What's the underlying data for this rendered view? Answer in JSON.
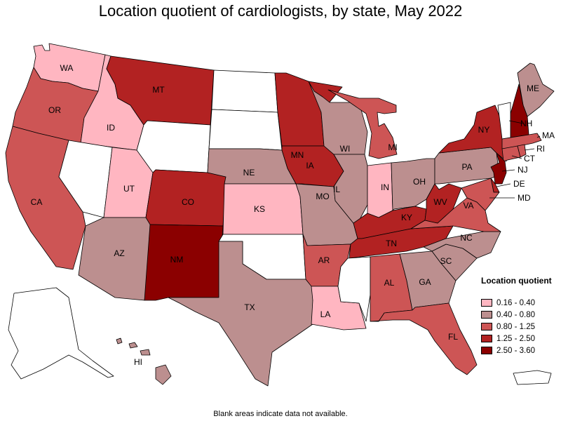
{
  "title": "Location quotient of cardiologists, by state, May 2022",
  "footnote": "Blank areas indicate data not available.",
  "legend": {
    "title": "Location quotient",
    "items": [
      {
        "label": "0.16 - 0.40",
        "color": "#ffb6c1"
      },
      {
        "label": "0.40 - 0.80",
        "color": "#bc8f8f"
      },
      {
        "label": "0.80 - 1.25",
        "color": "#cd5555"
      },
      {
        "label": "1.25 - 2.50",
        "color": "#b22222"
      },
      {
        "label": "2.50 - 3.60",
        "color": "#8b0000"
      }
    ]
  },
  "no_data_color": "#ffffff",
  "states": [
    {
      "abbr": "WA",
      "class": 0,
      "label": "WA"
    },
    {
      "abbr": "OR",
      "class": 2,
      "label": "OR"
    },
    {
      "abbr": "CA",
      "class": 2,
      "label": "CA"
    },
    {
      "abbr": "ID",
      "class": 0,
      "label": "ID"
    },
    {
      "abbr": "NV",
      "class": null,
      "label": ""
    },
    {
      "abbr": "UT",
      "class": 0,
      "label": "UT"
    },
    {
      "abbr": "AZ",
      "class": 1,
      "label": "AZ"
    },
    {
      "abbr": "MT",
      "class": 3,
      "label": "MT"
    },
    {
      "abbr": "WY",
      "class": null,
      "label": ""
    },
    {
      "abbr": "CO",
      "class": 3,
      "label": "CO"
    },
    {
      "abbr": "NM",
      "class": 4,
      "label": "NM"
    },
    {
      "abbr": "ND",
      "class": null,
      "label": ""
    },
    {
      "abbr": "SD",
      "class": null,
      "label": ""
    },
    {
      "abbr": "NE",
      "class": 1,
      "label": "NE"
    },
    {
      "abbr": "KS",
      "class": 0,
      "label": "KS"
    },
    {
      "abbr": "OK",
      "class": null,
      "label": ""
    },
    {
      "abbr": "TX",
      "class": 1,
      "label": "TX"
    },
    {
      "abbr": "MN",
      "class": 3,
      "label": "MN"
    },
    {
      "abbr": "IA",
      "class": 3,
      "label": "IA"
    },
    {
      "abbr": "MO",
      "class": 1,
      "label": "MO"
    },
    {
      "abbr": "AR",
      "class": 2,
      "label": "AR"
    },
    {
      "abbr": "LA",
      "class": 0,
      "label": "LA"
    },
    {
      "abbr": "WI",
      "class": 1,
      "label": "WI"
    },
    {
      "abbr": "IL",
      "class": 1,
      "label": "IL"
    },
    {
      "abbr": "MI",
      "class": 2,
      "label": "MI"
    },
    {
      "abbr": "IN",
      "class": 0,
      "label": "IN"
    },
    {
      "abbr": "OH",
      "class": 1,
      "label": "OH"
    },
    {
      "abbr": "KY",
      "class": 3,
      "label": "KY"
    },
    {
      "abbr": "TN",
      "class": 3,
      "label": "TN"
    },
    {
      "abbr": "MS",
      "class": null,
      "label": ""
    },
    {
      "abbr": "AL",
      "class": 2,
      "label": "AL"
    },
    {
      "abbr": "GA",
      "class": 1,
      "label": "GA"
    },
    {
      "abbr": "FL",
      "class": 2,
      "label": "FL"
    },
    {
      "abbr": "SC",
      "class": 1,
      "label": "SC"
    },
    {
      "abbr": "NC",
      "class": 1,
      "label": "NC"
    },
    {
      "abbr": "VA",
      "class": 2,
      "label": "VA"
    },
    {
      "abbr": "WV",
      "class": 3,
      "label": "WV"
    },
    {
      "abbr": "PA",
      "class": 1,
      "label": "PA"
    },
    {
      "abbr": "NY",
      "class": 3,
      "label": "NY"
    },
    {
      "abbr": "ME",
      "class": 1,
      "label": "ME"
    },
    {
      "abbr": "NH",
      "class": 4,
      "label": "NH"
    },
    {
      "abbr": "VT",
      "class": null,
      "label": ""
    },
    {
      "abbr": "MA",
      "class": 2,
      "label": "MA"
    },
    {
      "abbr": "CT",
      "class": 2,
      "label": "CT"
    },
    {
      "abbr": "RI",
      "class": 2,
      "label": "RI"
    },
    {
      "abbr": "NJ",
      "class": 4,
      "label": "NJ"
    },
    {
      "abbr": "DE",
      "class": 3,
      "label": "DE"
    },
    {
      "abbr": "MD",
      "class": 2,
      "label": "MD"
    },
    {
      "abbr": "AK",
      "class": null,
      "label": ""
    },
    {
      "abbr": "HI",
      "class": 1,
      "label": "HI"
    },
    {
      "abbr": "PR",
      "class": null,
      "label": ""
    }
  ]
}
